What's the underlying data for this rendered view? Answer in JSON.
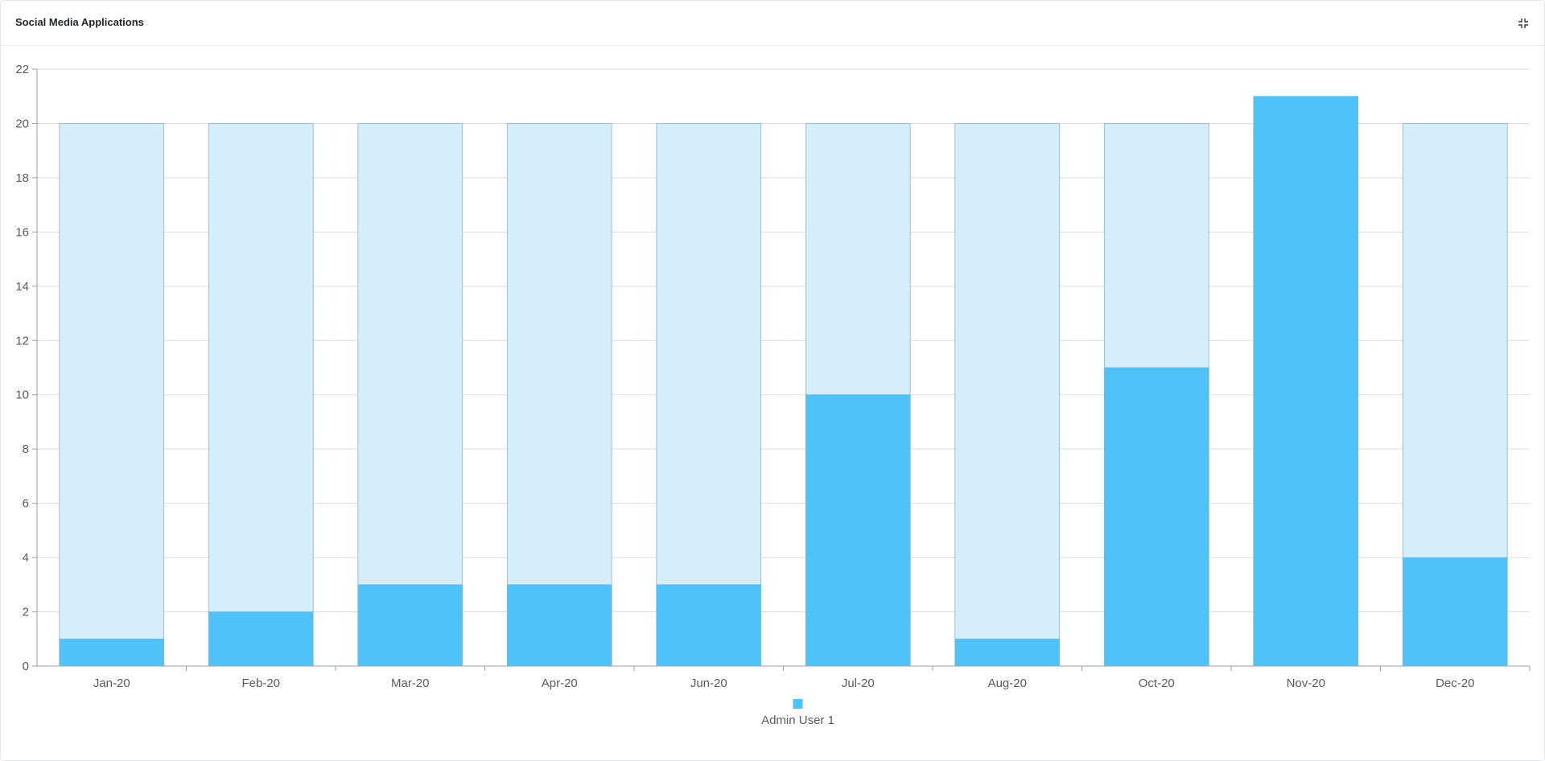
{
  "card": {
    "title": "Social Media Applications",
    "collapse_icon": "collapse-icon"
  },
  "colors": {
    "target_fill": "#d6eefb",
    "value_fill": "#4fc3f7",
    "bar_stroke": "#8fb0c2",
    "grid": "#d9dde0",
    "axis": "#9aa0a6",
    "tick_text": "#555b61"
  },
  "chart_data": {
    "type": "bar",
    "categories": [
      "Jan-20",
      "Feb-20",
      "Mar-20",
      "Apr-20",
      "Jun-20",
      "Jul-20",
      "Aug-20",
      "Oct-20",
      "Nov-20",
      "Dec-20"
    ],
    "series": [
      {
        "name": "Admin User 1",
        "values": [
          1,
          2,
          3,
          3,
          3,
          10,
          1,
          11,
          21,
          4
        ]
      }
    ],
    "background_bars": [
      20,
      20,
      20,
      20,
      20,
      20,
      20,
      20,
      20,
      20
    ],
    "ylim": [
      0,
      22
    ],
    "yticks": [
      0,
      2,
      4,
      6,
      8,
      10,
      12,
      14,
      16,
      18,
      20,
      22
    ],
    "grid": true,
    "legend_position": "bottom-center",
    "title": "",
    "xlabel": "",
    "ylabel": ""
  }
}
